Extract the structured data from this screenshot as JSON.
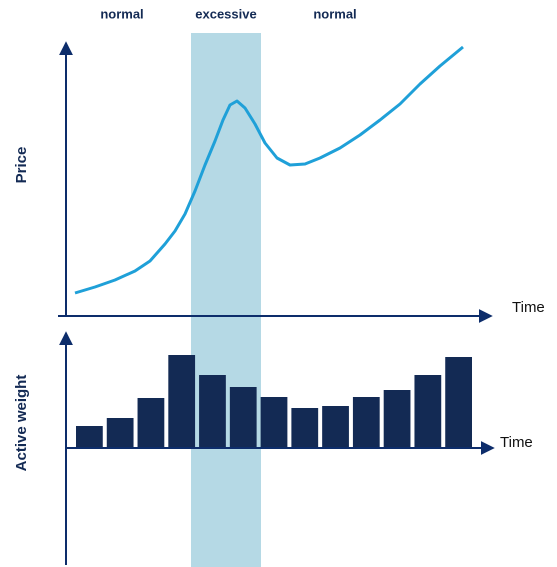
{
  "phases": [
    "normal",
    "excessive",
    "normal"
  ],
  "chart_data": [
    {
      "type": "line",
      "y_label": "Price",
      "x_label": "Time",
      "color": "#1fa0d8",
      "x": [
        10,
        30,
        50,
        70,
        85,
        100,
        110,
        120,
        130,
        140,
        150,
        158,
        165,
        172,
        180,
        190,
        200,
        212,
        225,
        240,
        255,
        275,
        295,
        315,
        335,
        355,
        375,
        398
      ],
      "values": [
        23,
        29,
        36,
        45,
        55,
        72,
        85,
        102,
        125,
        151,
        175,
        196,
        211,
        215,
        208,
        192,
        173,
        158,
        151,
        152,
        158,
        168,
        181,
        196,
        212,
        232,
        250,
        269
      ],
      "xlim": [
        0,
        425
      ],
      "ylim": [
        0,
        271
      ]
    },
    {
      "type": "bar",
      "y_label": "Active weight",
      "x_label": "Time",
      "color": "#132a54",
      "values": [
        22,
        30,
        50,
        93,
        73,
        61,
        51,
        40,
        42,
        51,
        58,
        73,
        91
      ],
      "ylim": [
        -117,
        113
      ]
    }
  ]
}
